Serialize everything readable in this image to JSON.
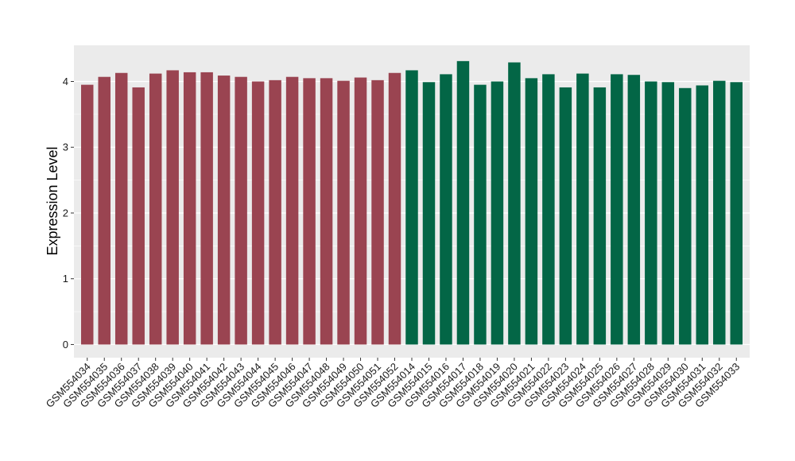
{
  "chart_data": {
    "type": "bar",
    "title": "",
    "xlabel": "",
    "ylabel": "Expression Level",
    "ylim": [
      -0.2,
      4.55
    ],
    "yticks": [
      0,
      1,
      2,
      3,
      4
    ],
    "grid": true,
    "legend": "none",
    "categories": [
      "GSM554034",
      "GSM554035",
      "GSM554036",
      "GSM554037",
      "GSM554038",
      "GSM554039",
      "GSM554040",
      "GSM554041",
      "GSM554042",
      "GSM554043",
      "GSM554044",
      "GSM554045",
      "GSM554046",
      "GSM554047",
      "GSM554048",
      "GSM554049",
      "GSM554050",
      "GSM554051",
      "GSM554052",
      "GSM554014",
      "GSM554015",
      "GSM554016",
      "GSM554017",
      "GSM554018",
      "GSM554019",
      "GSM554020",
      "GSM554021",
      "GSM554022",
      "GSM554023",
      "GSM554024",
      "GSM554025",
      "GSM554026",
      "GSM554027",
      "GSM554028",
      "GSM554029",
      "GSM554030",
      "GSM554031",
      "GSM554032",
      "GSM554033"
    ],
    "values": [
      3.95,
      4.07,
      4.13,
      3.91,
      4.12,
      4.17,
      4.14,
      4.14,
      4.09,
      4.07,
      4.0,
      4.02,
      4.07,
      4.05,
      4.05,
      4.01,
      4.06,
      4.02,
      4.13,
      4.17,
      3.99,
      4.11,
      4.31,
      3.95,
      4.0,
      4.29,
      4.05,
      4.11,
      3.91,
      4.12,
      3.91,
      4.11,
      4.1,
      4.0,
      3.99,
      3.9,
      3.94,
      4.01,
      3.99
    ],
    "bar_colors": [
      "#9a4451",
      "#9a4451",
      "#9a4451",
      "#9a4451",
      "#9a4451",
      "#9a4451",
      "#9a4451",
      "#9a4451",
      "#9a4451",
      "#9a4451",
      "#9a4451",
      "#9a4451",
      "#9a4451",
      "#9a4451",
      "#9a4451",
      "#9a4451",
      "#9a4451",
      "#9a4451",
      "#9a4451",
      "#036646",
      "#036646",
      "#036646",
      "#036646",
      "#036646",
      "#036646",
      "#036646",
      "#036646",
      "#036646",
      "#036646",
      "#036646",
      "#036646",
      "#036646",
      "#036646",
      "#036646",
      "#036646",
      "#036646",
      "#036646",
      "#036646",
      "#036646"
    ],
    "colors": {
      "panel_background": "#ebebeb",
      "grid_major": "#ffffff",
      "group_1": "#9a4451",
      "group_2": "#036646"
    }
  }
}
